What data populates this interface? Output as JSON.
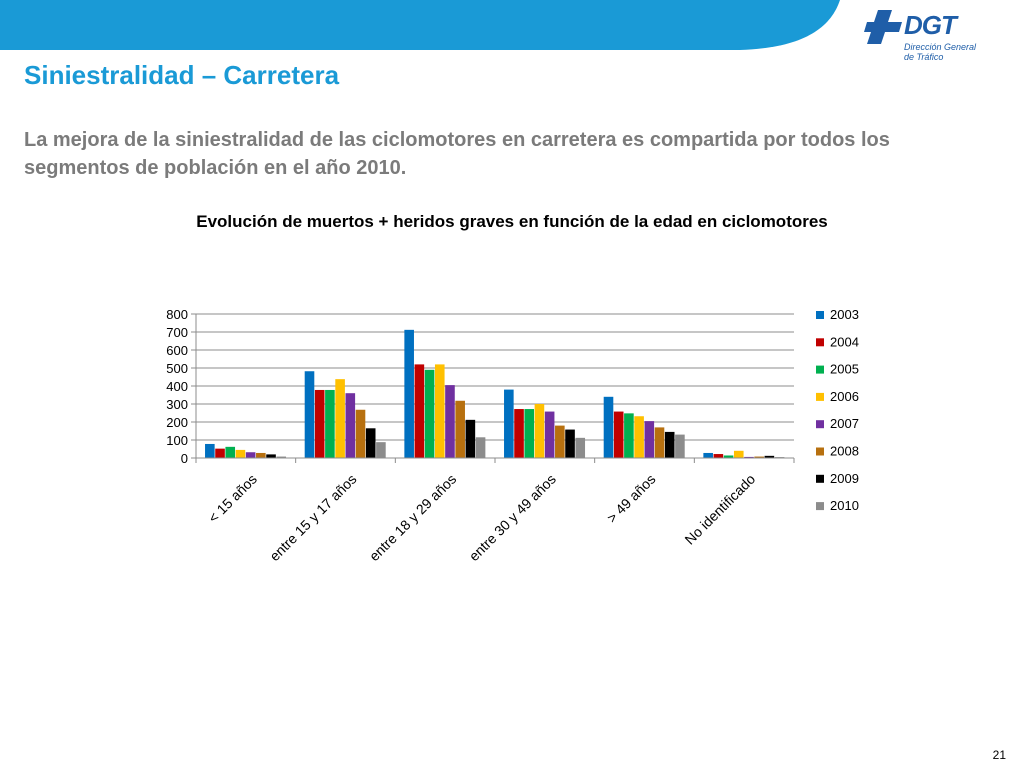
{
  "slide": {
    "title": "Siniestralidad – Carretera",
    "subtitle": "La mejora de la siniestralidad de las ciclomotores en carretera es compartida por todos los segmentos de población en el año 2010.",
    "page_number": "21"
  },
  "logo": {
    "brand": "DGT",
    "line1": "Dirección General",
    "line2": "de Tráfico",
    "color": "#1f5ea8"
  },
  "theme": {
    "band_color": "#1a9ad6",
    "title_color": "#1a9ad6"
  },
  "chart_data": {
    "type": "bar",
    "title": "Evolución de muertos + heridos graves en función de la edad en ciclomotores",
    "xlabel": "",
    "ylabel": "",
    "ylim": [
      0,
      800
    ],
    "yticks": [
      0,
      100,
      200,
      300,
      400,
      500,
      600,
      700,
      800
    ],
    "grid": true,
    "legend_position": "right",
    "categories": [
      "< 15 años",
      "entre 15 y 17 años",
      "entre 18 y 29 años",
      "entre 30 y 49 años",
      "> 49 años",
      "No identificado"
    ],
    "series": [
      {
        "name": "2003",
        "color": "#0070c0",
        "values": [
          78,
          482,
          712,
          380,
          340,
          28
        ]
      },
      {
        "name": "2004",
        "color": "#c00000",
        "values": [
          52,
          378,
          520,
          272,
          258,
          22
        ]
      },
      {
        "name": "2005",
        "color": "#00b050",
        "values": [
          62,
          378,
          490,
          272,
          248,
          14
        ]
      },
      {
        "name": "2006",
        "color": "#ffc000",
        "values": [
          45,
          438,
          520,
          300,
          232,
          40
        ]
      },
      {
        "name": "2007",
        "color": "#7030a0",
        "values": [
          32,
          360,
          405,
          258,
          205,
          6
        ]
      },
      {
        "name": "2008",
        "color": "#b7700f",
        "values": [
          28,
          268,
          318,
          180,
          170,
          8
        ]
      },
      {
        "name": "2009",
        "color": "#000000",
        "values": [
          20,
          165,
          212,
          158,
          145,
          12
        ]
      },
      {
        "name": "2010",
        "color": "#8c8c8c",
        "values": [
          8,
          88,
          115,
          112,
          130,
          5
        ]
      }
    ]
  }
}
